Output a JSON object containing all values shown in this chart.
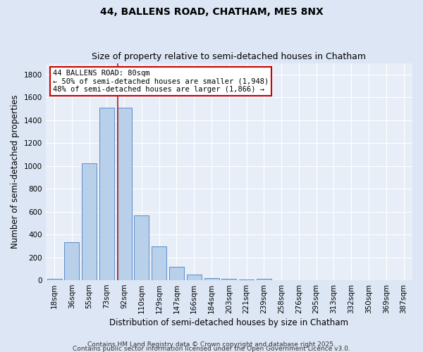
{
  "title": "44, BALLENS ROAD, CHATHAM, ME5 8NX",
  "subtitle": "Size of property relative to semi-detached houses in Chatham",
  "xlabel": "Distribution of semi-detached houses by size in Chatham",
  "ylabel": "Number of semi-detached properties",
  "categories": [
    "18sqm",
    "36sqm",
    "55sqm",
    "73sqm",
    "92sqm",
    "110sqm",
    "129sqm",
    "147sqm",
    "166sqm",
    "184sqm",
    "203sqm",
    "221sqm",
    "239sqm",
    "258sqm",
    "276sqm",
    "295sqm",
    "313sqm",
    "332sqm",
    "350sqm",
    "369sqm",
    "387sqm"
  ],
  "values": [
    15,
    335,
    1020,
    1510,
    1510,
    565,
    295,
    115,
    48,
    20,
    15,
    5,
    12,
    0,
    0,
    0,
    0,
    0,
    0,
    0,
    0
  ],
  "bar_color": "#b8d0ea",
  "bar_edge_color": "#5b8dc8",
  "background_color": "#e8eef8",
  "grid_color": "#ffffff",
  "annotation_line1": "44 BALLENS ROAD: 80sqm",
  "annotation_line2": "← 50% of semi-detached houses are smaller (1,948)",
  "annotation_line3": "48% of semi-detached houses are larger (1,866) →",
  "property_line_x": 3.62,
  "ylim": [
    0,
    1900
  ],
  "yticks": [
    0,
    200,
    400,
    600,
    800,
    1000,
    1200,
    1400,
    1600,
    1800
  ],
  "footer_line1": "Contains HM Land Registry data © Crown copyright and database right 2025.",
  "footer_line2": "Contains public sector information licensed under the Open Government Licence v3.0.",
  "title_fontsize": 10,
  "subtitle_fontsize": 9,
  "label_fontsize": 8.5,
  "tick_fontsize": 7.5,
  "annotation_fontsize": 7.5,
  "footer_fontsize": 6.5
}
